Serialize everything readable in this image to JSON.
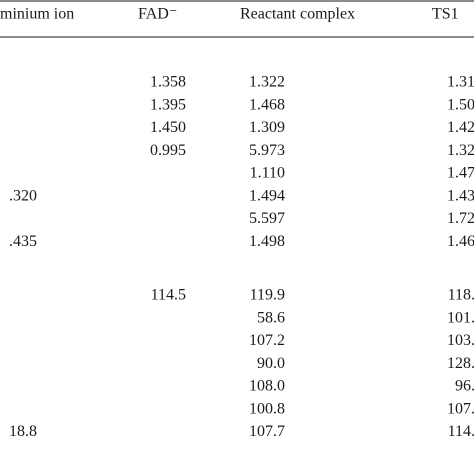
{
  "table": {
    "header": [
      "minium ion",
      "FAD⁻",
      "Reactant complex",
      "TS1"
    ],
    "sections": [
      {
        "rows": [
          [
            null,
            "1.358",
            "1.322",
            "1.31"
          ],
          [
            null,
            "1.395",
            "1.468",
            "1.50"
          ],
          [
            null,
            "1.450",
            "1.309",
            "1.42"
          ],
          [
            null,
            "0.995",
            "5.973",
            "1.32"
          ],
          [
            null,
            null,
            "1.110",
            "1.47"
          ],
          [
            ".320",
            null,
            "1.494",
            "1.43"
          ],
          [
            null,
            null,
            "5.597",
            "1.72"
          ],
          [
            ".435",
            null,
            "1.498",
            "1.46"
          ]
        ]
      },
      {
        "rows": [
          [
            null,
            "114.5",
            "119.9",
            "118."
          ],
          [
            null,
            null,
            "58.6",
            "101."
          ],
          [
            null,
            null,
            "107.2",
            "103."
          ],
          [
            null,
            null,
            "90.0",
            "128."
          ],
          [
            null,
            null,
            "108.0",
            "96."
          ],
          [
            null,
            null,
            "100.8",
            "107."
          ],
          [
            "18.8",
            null,
            "107.7",
            "114."
          ]
        ]
      }
    ]
  }
}
